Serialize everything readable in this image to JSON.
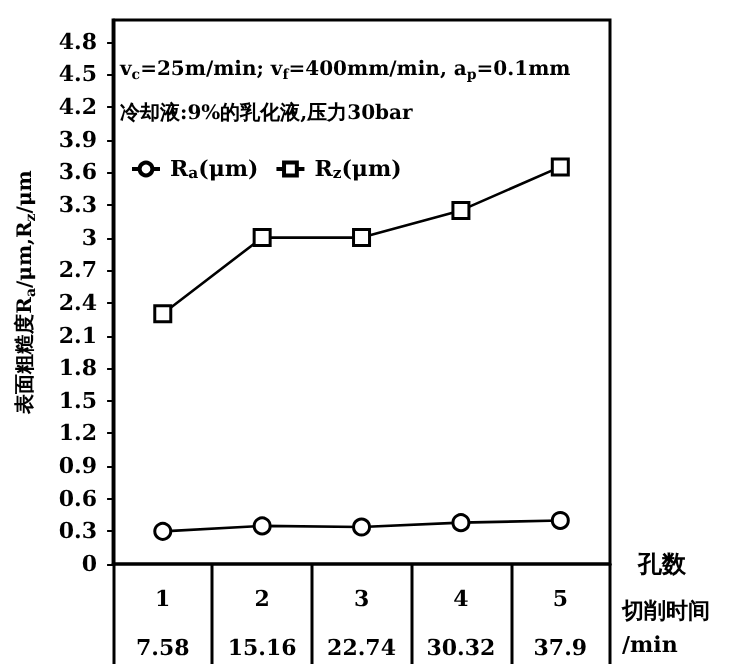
{
  "chart_data": {
    "type": "line",
    "ylabel": "表面粗糙度R$_{a}$/μm,R$_{z}$/μm",
    "xlabel": "孔数",
    "categories": [
      "1",
      "2",
      "3",
      "4",
      "5"
    ],
    "series": [
      {
        "name": "R$_{a}$(μm)",
        "color": "#000000",
        "marker": "circle",
        "values": [
          0.3,
          0.35,
          0.34,
          0.38,
          0.4
        ]
      },
      {
        "name": "R$_{z}$(μm)",
        "color": "#000000",
        "marker": "square",
        "values": [
          2.3,
          3.0,
          3.0,
          3.25,
          3.65
        ]
      }
    ],
    "ylim": [
      0,
      5
    ],
    "yticks": [
      0,
      0.3,
      0.6,
      0.9,
      1.2,
      1.5,
      1.8,
      2.1,
      2.4,
      2.7,
      3,
      3.3,
      3.6,
      3.9,
      4.2,
      4.5,
      4.8
    ],
    "annotations": [
      "v$_{c}$=25m/min; v$_{f}$=400mm/min, a$_{p}$=0.1mm",
      "冷却液:9%的乳化液,压力30bar",
      "切削时间/min",
      "7.58",
      "15.16",
      "22.74",
      "30.32",
      "37.9"
    ],
    "legend": "top left",
    "grid": false,
    "line_style": "solid"
  }
}
